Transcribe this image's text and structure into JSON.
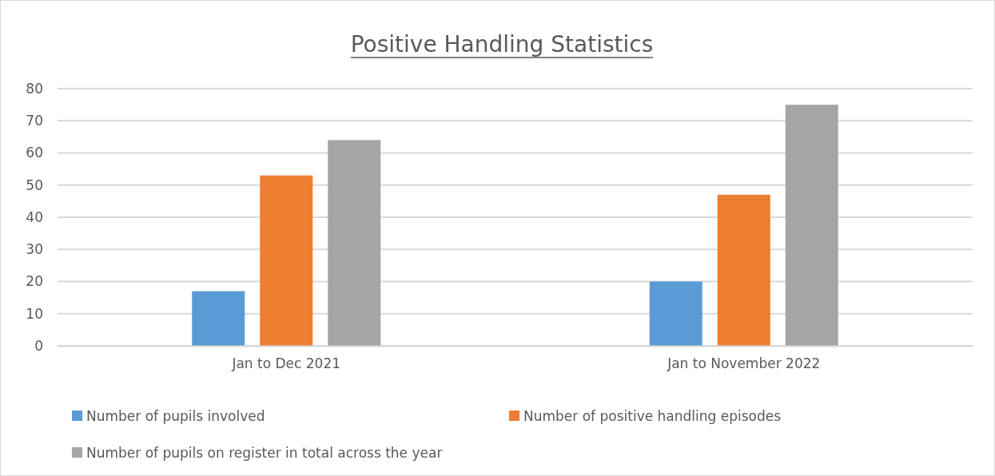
{
  "chart_data": {
    "type": "bar",
    "title": "Positive Handling Statistics",
    "categories": [
      "Jan to Dec 2021",
      "Jan to November 2022"
    ],
    "series": [
      {
        "name": "Number of pupils involved",
        "color": "#5b9bd5",
        "values": [
          17,
          20
        ]
      },
      {
        "name": "Number of positive handling episodes",
        "color": "#ed7d31",
        "values": [
          53,
          47
        ]
      },
      {
        "name": "Number of pupils on register in total across the year",
        "color": "#a5a5a5",
        "values": [
          64,
          75
        ]
      }
    ],
    "ylim": [
      0,
      80
    ],
    "yticks": [
      0,
      10,
      20,
      30,
      40,
      50,
      60,
      70,
      80
    ],
    "grid": "y",
    "legend": "bottom"
  }
}
